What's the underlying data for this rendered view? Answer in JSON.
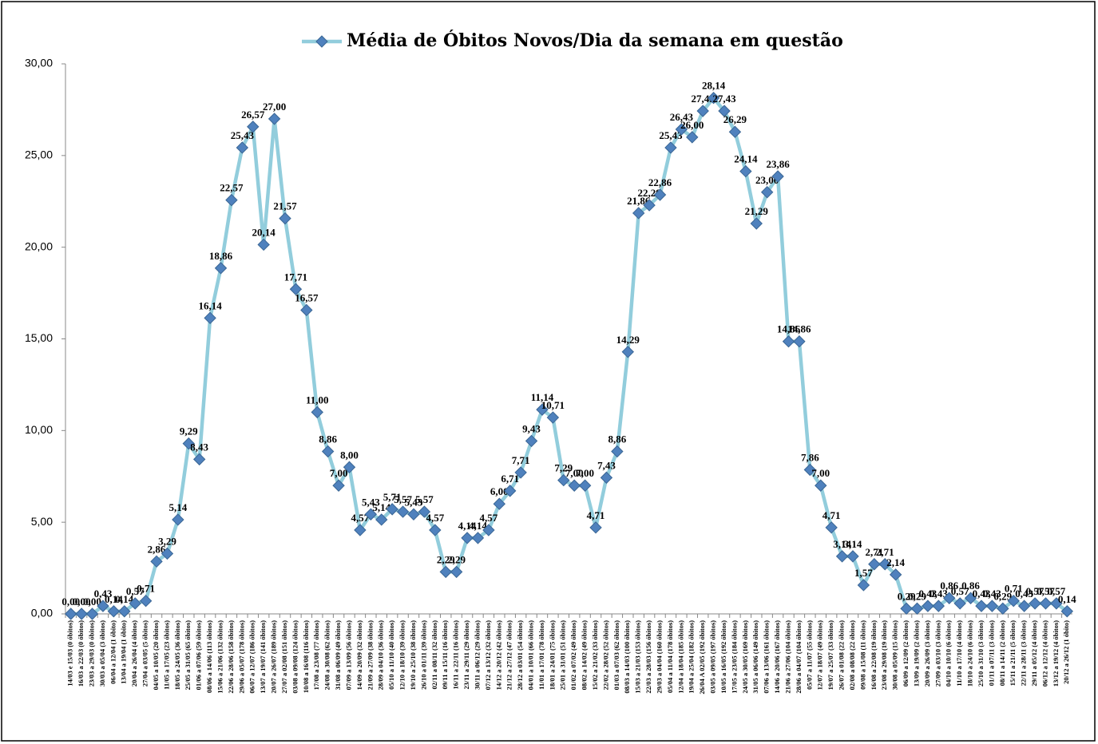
{
  "chart_data": {
    "type": "line",
    "categories": [
      "14/03 e 15/03 (0 óbitos)",
      "16/03 a 22/03 (0 óbitos)",
      "23/03 a 29/03 (0 óbitos)",
      "30/03 a 05/04 (3 óbitos)",
      "06/04 a 12/04 (1 óbito)",
      "13/04 a 19/04 (1 óbito)",
      "20/04 a 26/04 (4 óbitos)",
      "27/04 a 03/05 (5 óbitos)",
      "04/05 a 10/05 (20 óbitos)",
      "11/05 a 17/05 (23 óbitos)",
      "18/05 a 24/05 (36 óbitos)",
      "25/05 a 31/05 (65 óbitos)",
      "01/06 a 07/06 (59 óbitos)",
      "08/06 a 14/06 (113 óbitos)",
      "15/06 a 21/06 (132 óbitos)",
      "22/06 a 28/06 (158 óbitos)",
      "29/06 a 05/07 (178 óbitos)",
      "06/07 a 12/07 (186 óbitos)",
      "13/07 a 19/07 (141 óbitos)",
      "20/07 a 26/07 (189 óbitos)",
      "27/07 a 02/08 (151 óbitos)",
      "03/08 a 09/08 (124 óbitos)",
      "10/08 a 16/08 (116 óbitos)",
      "17/08 a 23/08 (77 óbitos)",
      "24/08 a 30/08 (62 óbitos)",
      "31/08 a 06/09 (49 óbitos)",
      "07/09 a 13/09 (56 óbitos)",
      "14/09 a 20/09 (32 óbitos)",
      "21/09 a 27/09 (38 óbitos)",
      "28/09 a 04/10 (36 óbitos)",
      "05/10 a 11/10 (40 óbitos)",
      "12/10 a 18/10 (39 óbitos)",
      "19/10 a 25/10 (38 óbitos)",
      "26/10 a 01/11 (39 óbitos)",
      "02/11 a 08/11 (32 óbitos)",
      "09/11 a 15/11 (16 óbitos)",
      "16/11 a 22/11 (16 óbitos)",
      "23/11 a 29/11 (29 óbitos)",
      "30/11 a 06/12 (29 óbitos)",
      "07/12 a 13/12 (32 óbitos)",
      "14/12 a 20/12 (42 óbitos)",
      "21/12 a 27/12 (47 óbitos)",
      "28/12 a 03/01 (54 óbitos)",
      "04/01 a 10/01 (66 óbitos)",
      "11/01 a 17/01 (78 óbitos)",
      "18/01 a 24/01 (75 óbitos)",
      "25/01 a 31/01 (51 óbitos)",
      "01/02 a 07/02 (49 óbitos)",
      "08/02 a 14/02 (49 óbitos)",
      "15/02 a 21/02 (33 óbitos)",
      "22/02 a 28/02 (52 óbitos)",
      "01/03 a 07/03 (62 óbitos)",
      "08/03 a 14/03 (100 óbitos)",
      "15/03 a 21/03 (153 óbitos)",
      "22/03 a 28/03 (156 óbitos)",
      "29/03 a 04/04 (160 óbitos)",
      "05/04 a 11/04 (178 óbitos)",
      "12/04 a 18/04 (185 óbitos)",
      "19/04 a 25/04 (182 óbitos)",
      "26/04 A 02/05 (192 óbitos)",
      "03/05 a 09/05 (197 óbitos)",
      "10/05 a 16/05 (192 óbitos)",
      "17/05 a 23/05 (184 óbitos)",
      "24/05 a 30/05 (169 óbitos)",
      "31/05 a 06/06 (149 óbitos)",
      "07/06 a 13/06 (161 óbitos)",
      "14/06 a 20/06 (167 óbitos)",
      "21/06 a 27/06 (104 óbitos)",
      "28/06 a 04/07 (104 óbitos)",
      "05/07 a 11/07 (55 óbitos)",
      "12/07 a 18/07 (49 óbitos)",
      "19/07 a 25/07 (33 óbitos)",
      "26/07 a 01/08 (22 óbitos)",
      "02/08 a 08/08 (22 óbitos)",
      "09/08 a 15/08 (11 óbitos)",
      "16/08 a 22/08 (19 óbitos)",
      "23/08 a 29/08 (19 óbitos)",
      "30/08 a 05/09 (15 óbitos)",
      "06/09 a 12/09 (2 óbitos)",
      "13/09 a 19/09 (2 óbitos)",
      "20/09 a 26/09 (3 óbitos)",
      "27/09 a 03/10 (3 óbitos)",
      "04/10 a 10/10 (6 óbitos)",
      "11/10 a 17/10 (4 óbitos)",
      "18/10 a 24/10 (6 óbitos)",
      "25/10 a 31/10 (3 óbitos)",
      "01/11 a 07/11 (3 óbitos)",
      "08/11 a 14/11 (2 óbitos)",
      "15/11 a 21/11 (5 óbitos)",
      "22/11 a 28/11 (3 óbitos)",
      "29/11 a 05/12 (4 óbitos)",
      "06/12 a 12/12 (4 óbitos)",
      "13/12 a 19/12 (4 óbitos)",
      "20/12 a 26/12 (1 óbito)"
    ],
    "series": [
      {
        "name": "Média de Óbitos Novos/Dia da semana em questão",
        "color": "#92cddc",
        "marker_color": "#4f81bd",
        "values": [
          0,
          0,
          0,
          0.43,
          0.14,
          0.14,
          0.57,
          0.71,
          2.86,
          3.29,
          5.14,
          9.29,
          8.43,
          16.14,
          18.86,
          22.57,
          25.43,
          26.57,
          20.14,
          27.0,
          21.57,
          17.71,
          16.57,
          11.0,
          8.86,
          7.0,
          8.0,
          4.57,
          5.43,
          5.14,
          5.71,
          5.57,
          5.43,
          5.57,
          4.57,
          2.29,
          2.29,
          4.14,
          4.14,
          4.57,
          6.0,
          6.71,
          7.71,
          9.43,
          11.14,
          10.71,
          7.29,
          7.0,
          7.0,
          4.71,
          7.43,
          8.86,
          14.29,
          21.86,
          22.29,
          22.86,
          25.43,
          26.43,
          26.0,
          27.43,
          28.14,
          27.43,
          26.29,
          24.14,
          21.29,
          23.0,
          23.86,
          14.86,
          14.86,
          7.86,
          7.0,
          4.71,
          3.14,
          3.14,
          1.57,
          2.71,
          2.71,
          2.14,
          0.29,
          0.29,
          0.43,
          0.43,
          0.86,
          0.57,
          0.86,
          0.43,
          0.43,
          0.29,
          0.71,
          0.43,
          0.57,
          0.57,
          0.57,
          0.14
        ],
        "value_labels": [
          "0,00",
          "0,00",
          "0,00",
          "0,43",
          "0,14",
          "0,14",
          "0,57",
          "0,71",
          "2,86",
          "3,29",
          "5,14",
          "9,29",
          "8,43",
          "16,14",
          "18,86",
          "22,57",
          "25,43",
          "26,57",
          "20,14",
          "27,00",
          "21,57",
          "17,71",
          "16,57",
          "11,00",
          "8,86",
          "7,00",
          "8,00",
          "4,57",
          "5,43",
          "5,14",
          "5,71",
          "5,57",
          "5,43",
          "5,57",
          "4,57",
          "2,29",
          "2,29",
          "4,14",
          "4,14",
          "4,57",
          "6,00",
          "6,71",
          "7,71",
          "9,43",
          "11,14",
          "10,71",
          "7,29",
          "7,00",
          "7,00",
          "4,71",
          "7,43",
          "8,86",
          "14,29",
          "21,86",
          "22,29",
          "22,86",
          "25,43",
          "26,43",
          "26,00",
          "27,43",
          "28,14",
          "27,43",
          "26,29",
          "24,14",
          "21,29",
          "23,00",
          "23,86",
          "14,86",
          "14,86",
          "7,86",
          "7,00",
          "4,71",
          "3,14",
          "3,14",
          "1,57",
          "2,71",
          "2,71",
          "2,14",
          "0,29",
          "0,29",
          "0,43",
          "0,43",
          "0,86",
          "0,57",
          "0,86",
          "0,43",
          "0,43",
          "0,29",
          "0,71",
          "0,43",
          "0,57",
          "0,57",
          "0,57",
          "0,14"
        ]
      }
    ],
    "ylim": [
      0,
      30
    ],
    "yticks": [
      {
        "value": 0,
        "label": "0,00"
      },
      {
        "value": 5,
        "label": "5,00"
      },
      {
        "value": 10,
        "label": "10,00"
      },
      {
        "value": 15,
        "label": "15,00"
      },
      {
        "value": 20,
        "label": "20,00"
      },
      {
        "value": 25,
        "label": "25,00"
      },
      {
        "value": 30,
        "label": "30,00"
      }
    ],
    "legend": "top"
  }
}
